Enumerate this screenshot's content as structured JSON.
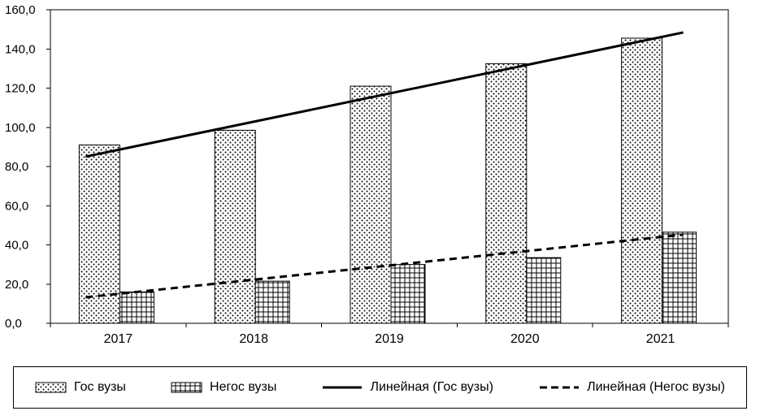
{
  "chart_data": {
    "type": "bar",
    "categories": [
      "2017",
      "2018",
      "2019",
      "2020",
      "2021"
    ],
    "series": [
      {
        "name": "Гос вузы",
        "pattern": "dots",
        "values": [
          91.0,
          98.5,
          121.0,
          132.5,
          145.5
        ]
      },
      {
        "name": "Негос вузы",
        "pattern": "grid",
        "values": [
          16.0,
          21.5,
          30.0,
          33.5,
          46.5
        ]
      }
    ],
    "trendlines": [
      {
        "name": "Линейная (Гос вузы)",
        "style": "solid",
        "start": 88.5,
        "end": 146.0
      },
      {
        "name": "Линейная (Негос вузы)",
        "style": "dashed",
        "start": 15.0,
        "end": 44.0
      }
    ],
    "ylim": [
      0,
      160
    ],
    "y_ticks": [
      0,
      20,
      40,
      60,
      80,
      100,
      120,
      140,
      160
    ],
    "y_tick_labels": [
      "0,0",
      "20,0",
      "40,0",
      "60,0",
      "80,0",
      "100,0",
      "120,0",
      "140,0",
      "160,0"
    ],
    "grid": false,
    "legend_position": "bottom",
    "legend": [
      "Гос вузы",
      "Негос вузы",
      "Линейная (Гос вузы)",
      "Линейная (Негос вузы)"
    ],
    "colors": {
      "foreground": "#000000",
      "background": "#ffffff"
    }
  }
}
